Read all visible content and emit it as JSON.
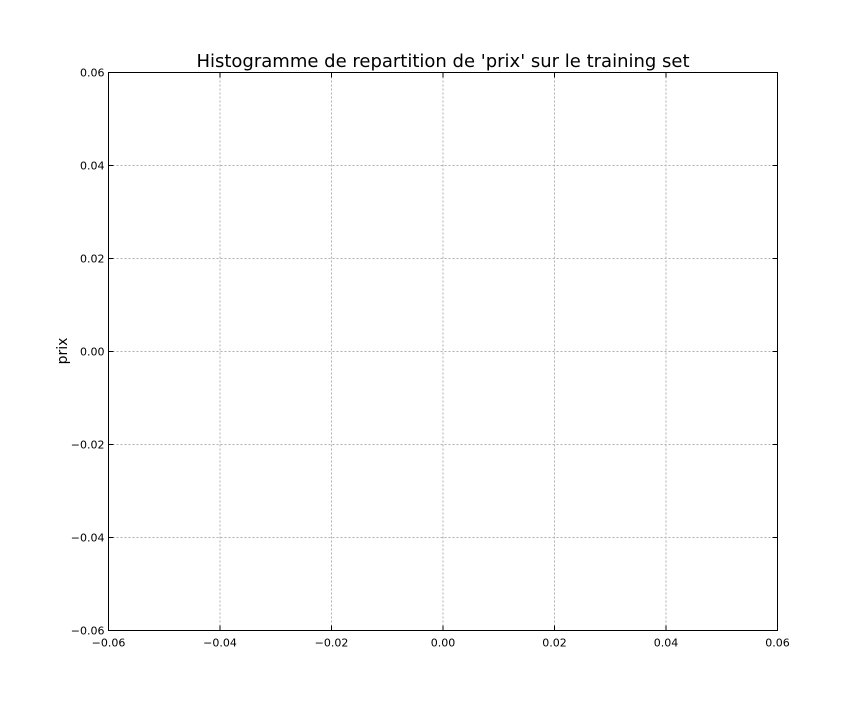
{
  "chart_data": {
    "type": "bar",
    "title": "Histogramme de repartition de 'prix' sur le training set",
    "xlabel": "",
    "ylabel": "prix",
    "xlim": [
      -0.06,
      0.06
    ],
    "ylim": [
      -0.06,
      0.06
    ],
    "x_ticks": [
      -0.06,
      -0.04,
      -0.02,
      0.0,
      0.02,
      0.04,
      0.06
    ],
    "y_ticks": [
      -0.06,
      -0.04,
      -0.02,
      0.0,
      0.02,
      0.04,
      0.06
    ],
    "x_tick_labels": [
      "−0.06",
      "−0.04",
      "−0.02",
      "0.00",
      "0.02",
      "0.04",
      "0.06"
    ],
    "y_tick_labels": [
      "−0.06",
      "−0.04",
      "−0.02",
      "0.00",
      "0.02",
      "0.04",
      "0.06"
    ],
    "grid": true,
    "series": [],
    "colors": {
      "grid": "#b0b0b0",
      "frame": "#000000",
      "background": "#ffffff"
    }
  }
}
